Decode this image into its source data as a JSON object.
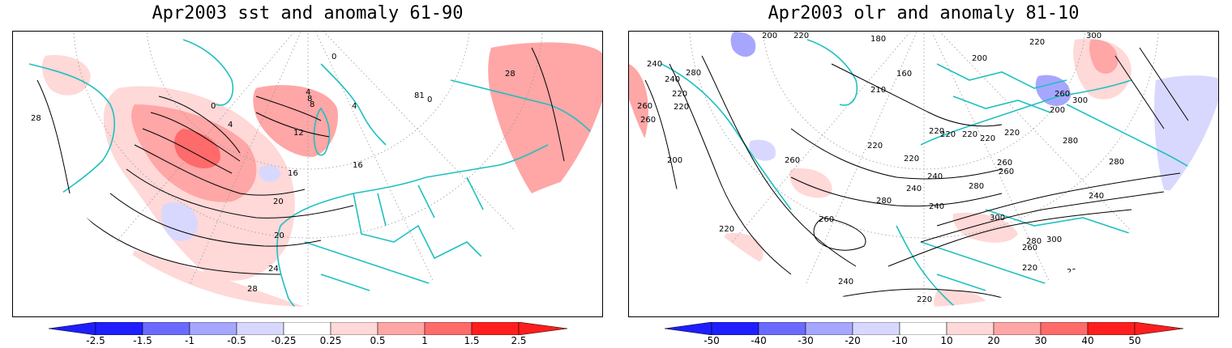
{
  "panels": [
    {
      "title": "Apr2003 sst and anomaly 61-90",
      "contour_labels": [
        "0",
        "4",
        "8",
        "12",
        "16",
        "20",
        "24",
        "28",
        "4",
        "8",
        "0",
        "4",
        "28",
        "28",
        "16",
        "20",
        "81",
        "0"
      ],
      "colorbar_labels": [
        "-2.5",
        "-1.5",
        "-1",
        "-0.5",
        "-0.25",
        "0.25",
        "0.5",
        "1",
        "1.5",
        "2.5"
      ]
    },
    {
      "title": "Apr2003 olr and anomaly 81-10",
      "contour_labels": [
        "200",
        "220",
        "180",
        "160",
        "200",
        "210",
        "220",
        "200",
        "240",
        "280",
        "300",
        "240",
        "260",
        "220",
        "260",
        "220",
        "220",
        "240",
        "280",
        "260",
        "200",
        "260",
        "220",
        "300",
        "280",
        "260",
        "240",
        "220",
        "260",
        "280",
        "280",
        "240",
        "220",
        "220",
        "220",
        "240",
        "220",
        "220",
        "260",
        "220",
        "220",
        "300",
        "260",
        "280",
        "300",
        "240",
        "200",
        "220",
        "220",
        "240"
      ],
      "colorbar_labels": [
        "-50",
        "-40",
        "-30",
        "-20",
        "-10",
        "10",
        "20",
        "30",
        "40",
        "50"
      ]
    }
  ],
  "colors": {
    "blue_dark": "#1e1eff",
    "blue_mid": "#6a6aff",
    "blue_light": "#a6a6ff",
    "blue_pale": "#d8d8ff",
    "red_pale": "#ffd8d8",
    "red_light": "#ffa6a6",
    "red_mid": "#ff6a6a",
    "red_dark": "#ff1e1e",
    "coast": "#20c0c0"
  }
}
